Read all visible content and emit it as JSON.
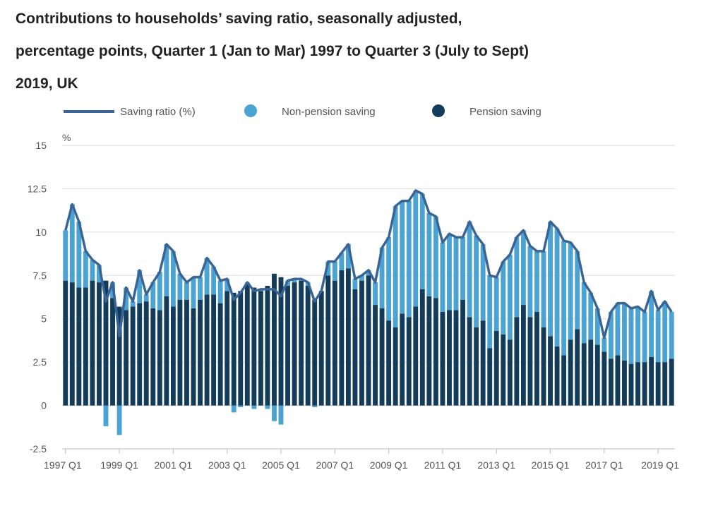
{
  "title_lines": [
    "Contributions to households’ saving ratio, seasonally adjusted,",
    "percentage points, Quarter 1 (Jan to Mar) 1997 to Quarter 3 (July to Sept)",
    "2019, UK"
  ],
  "colors": {
    "line": "#3a6494",
    "non_pension": "#4ba3d3",
    "pension": "#133c5a",
    "grid": "#dddddd",
    "axis": "#bbbbbb"
  },
  "chart_data": {
    "type": "bar",
    "stacked": true,
    "ylabel": "%",
    "ylim": [
      -2.5,
      15
    ],
    "yticks": [
      "15",
      "12.5",
      "10",
      "7.5",
      "5",
      "2.5",
      "0",
      "-2.5"
    ],
    "ytick_values": [
      15,
      12.5,
      10,
      7.5,
      5,
      2.5,
      0,
      -2.5
    ],
    "xtick_labels": [
      "1997 Q1",
      "1999 Q1",
      "2001 Q1",
      "2003 Q1",
      "2005 Q1",
      "2007 Q1",
      "2009 Q1",
      "2011 Q1",
      "2013 Q1",
      "2015 Q1",
      "2017 Q1",
      "2019 Q1"
    ],
    "xtick_index": [
      0,
      8,
      16,
      24,
      32,
      40,
      48,
      56,
      64,
      72,
      80,
      88
    ],
    "legend": [
      "Saving ratio (%)",
      "Non-pension saving",
      "Pension saving"
    ],
    "series": [
      {
        "name": "Pension saving",
        "kind": "bar",
        "values": [
          7.2,
          7.1,
          6.8,
          6.8,
          7.2,
          7.1,
          7.2,
          6.2,
          5.7,
          5.5,
          5.7,
          5.9,
          6.0,
          5.6,
          5.5,
          6.3,
          5.7,
          6.1,
          6.1,
          5.6,
          6.1,
          6.4,
          6.4,
          5.9,
          6.6,
          6.5,
          6.6,
          7.0,
          6.8,
          6.6,
          6.9,
          7.6,
          7.4,
          6.9,
          7.1,
          7.2,
          6.9,
          6.1,
          6.6,
          7.5,
          7.2,
          7.8,
          7.9,
          6.7,
          7.2,
          7.5,
          5.8,
          5.6,
          4.9,
          4.5,
          5.3,
          5.1,
          5.7,
          6.7,
          6.3,
          6.2,
          5.4,
          5.5,
          5.5,
          6.1,
          5.1,
          4.5,
          4.9,
          3.3,
          4.3,
          4.1,
          3.8,
          5.1,
          5.8,
          5.1,
          5.4,
          4.5,
          4.0,
          3.4,
          2.9,
          3.8,
          4.4,
          3.6,
          3.8,
          3.5,
          3.1,
          2.7,
          2.9,
          2.6,
          2.4,
          2.5,
          2.5,
          2.8,
          2.5,
          2.5,
          2.7
        ]
      },
      {
        "name": "Non-pension saving",
        "kind": "bar",
        "values": [
          2.9,
          4.5,
          3.8,
          2.1,
          1.2,
          1.0,
          -1.2,
          0.9,
          -1.7,
          1.3,
          0.3,
          1.9,
          0.4,
          1.5,
          2.2,
          3.0,
          3.2,
          1.5,
          1.0,
          1.8,
          1.3,
          2.1,
          1.6,
          1.3,
          0.7,
          -0.4,
          -0.1,
          0.1,
          -0.2,
          0.1,
          -0.2,
          -0.9,
          -1.1,
          0.3,
          0.2,
          0.1,
          0.2,
          -0.1,
          0.0,
          0.8,
          1.1,
          1.0,
          1.4,
          0.6,
          0.3,
          0.3,
          1.3,
          3.5,
          4.8,
          7.0,
          6.5,
          6.7,
          6.7,
          5.5,
          4.8,
          4.7,
          4.0,
          4.4,
          4.2,
          3.6,
          5.5,
          5.3,
          4.4,
          4.2,
          3.1,
          4.2,
          4.9,
          4.6,
          4.3,
          4.1,
          3.5,
          4.4,
          6.6,
          6.8,
          6.6,
          5.6,
          4.5,
          3.5,
          2.7,
          2.1,
          0.8,
          2.7,
          3.0,
          3.3,
          3.2,
          3.2,
          2.9,
          3.8,
          3.0,
          3.5,
          2.7
        ]
      },
      {
        "name": "Saving ratio (%)",
        "kind": "line",
        "values": [
          10.1,
          11.6,
          10.6,
          8.9,
          8.4,
          8.1,
          6.0,
          7.1,
          4.0,
          6.8,
          6.0,
          7.8,
          6.4,
          7.1,
          7.7,
          9.3,
          8.9,
          7.6,
          7.1,
          7.4,
          7.4,
          8.5,
          8.0,
          7.2,
          7.3,
          6.1,
          6.5,
          7.1,
          6.6,
          6.7,
          6.7,
          6.7,
          6.3,
          7.2,
          7.3,
          7.3,
          7.1,
          6.0,
          6.6,
          8.3,
          8.3,
          8.8,
          9.3,
          7.3,
          7.5,
          7.8,
          7.1,
          9.1,
          9.7,
          11.5,
          11.8,
          11.8,
          12.4,
          12.2,
          11.1,
          10.9,
          9.4,
          9.9,
          9.7,
          9.7,
          10.6,
          9.8,
          9.3,
          7.5,
          7.4,
          8.3,
          8.7,
          9.7,
          10.1,
          9.2,
          8.9,
          8.9,
          10.6,
          10.2,
          9.5,
          9.4,
          8.9,
          7.1,
          6.5,
          5.6,
          3.9,
          5.4,
          5.9,
          5.9,
          5.6,
          5.7,
          5.4,
          6.6,
          5.5,
          6.0,
          5.4
        ]
      }
    ]
  }
}
